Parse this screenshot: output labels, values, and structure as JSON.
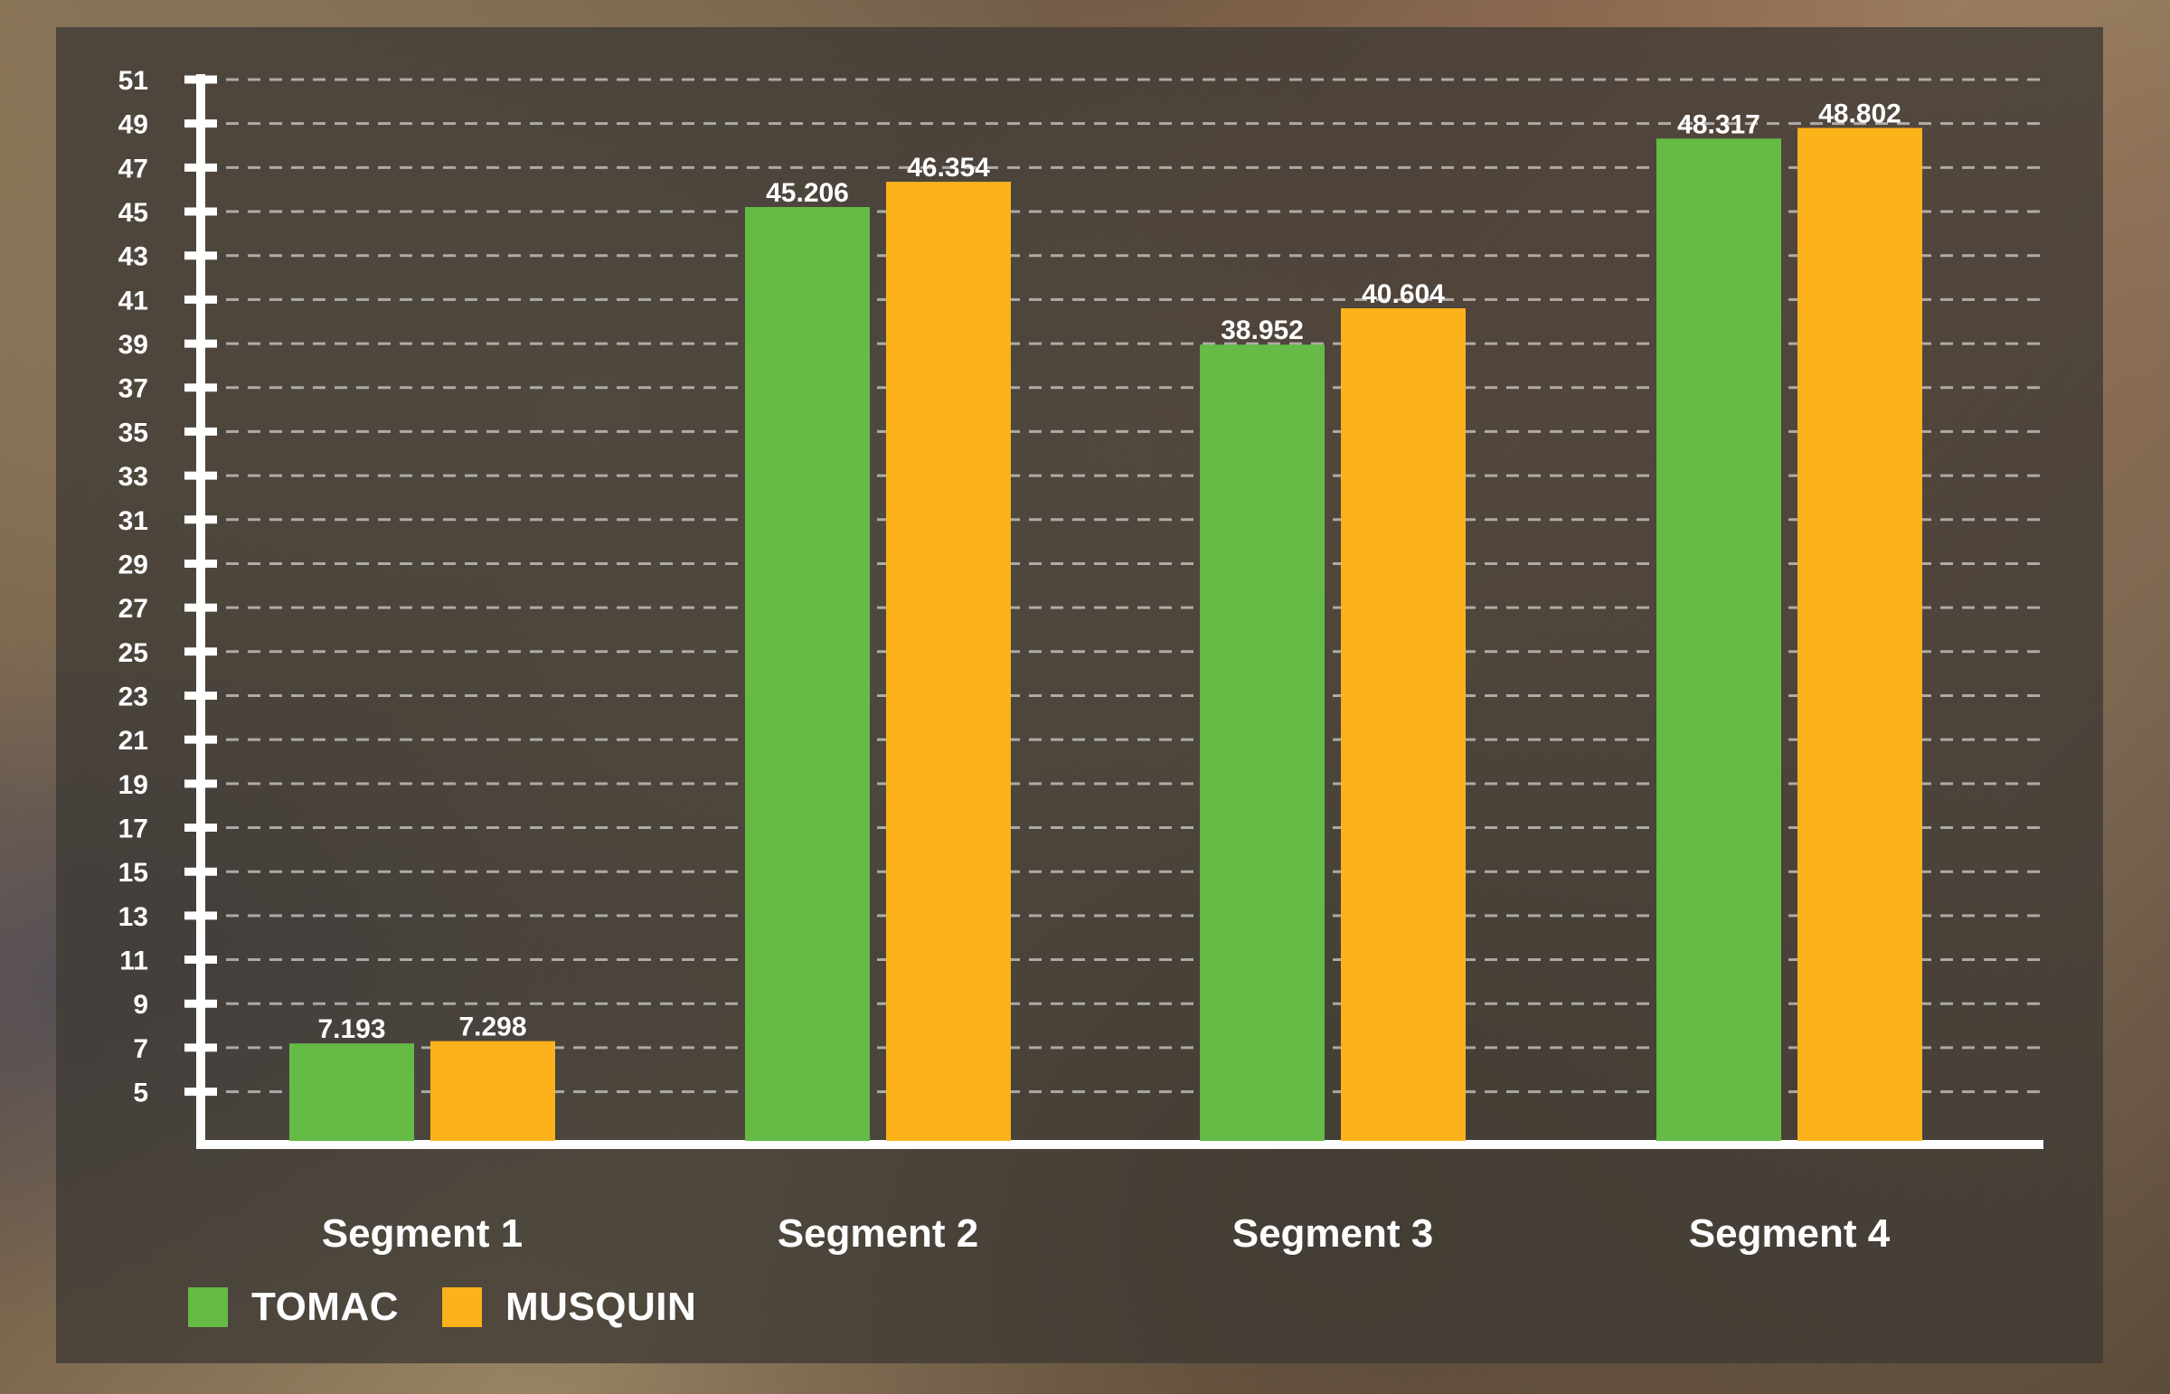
{
  "chart_data": {
    "type": "bar",
    "categories": [
      "Segment 1",
      "Segment 2",
      "Segment 3",
      "Segment 4"
    ],
    "series": [
      {
        "name": "TOMAC",
        "color": "#65bb45",
        "values": [
          7.193,
          45.206,
          38.952,
          48.317
        ]
      },
      {
        "name": "MUSQUIN",
        "color": "#fbb21b",
        "values": [
          7.298,
          46.354,
          40.604,
          48.802
        ]
      }
    ],
    "data_labels": [
      [
        "7.193",
        "45.206",
        "38.952",
        "48.317"
      ],
      [
        "7.298",
        "46.354",
        "40.604",
        "48.802"
      ]
    ],
    "yticks": [
      5,
      7,
      9,
      11,
      13,
      15,
      17,
      19,
      21,
      23,
      25,
      27,
      29,
      31,
      33,
      35,
      37,
      39,
      41,
      43,
      45,
      47,
      49,
      51
    ],
    "ylim": [
      2.6,
      51
    ],
    "grid": true,
    "legend": "bottom-left",
    "title": "",
    "xlabel": "",
    "ylabel": ""
  },
  "legend": {
    "items": [
      {
        "label": "TOMAC",
        "color": "#65bb45"
      },
      {
        "label": "MUSQUIN",
        "color": "#fbb21b"
      }
    ]
  }
}
